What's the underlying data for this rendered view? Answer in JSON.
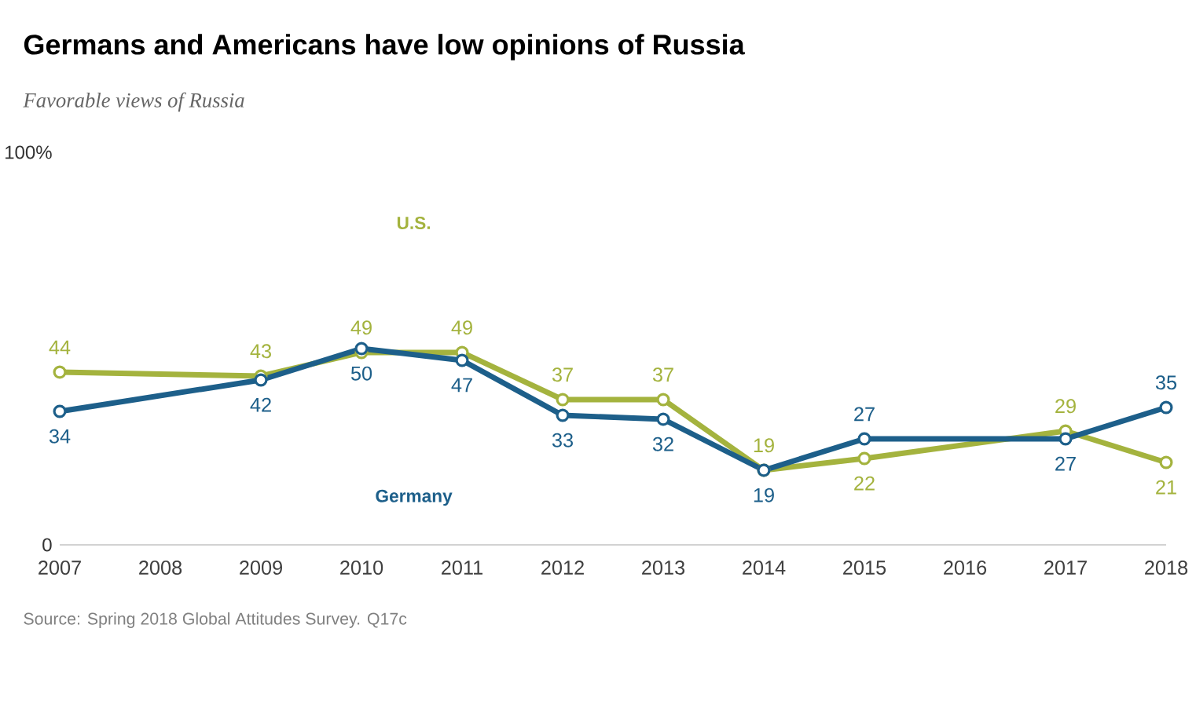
{
  "chart_data": {
    "type": "line",
    "title": "Germans and Americans have low opinions of Russia",
    "subtitle": "Favorable views of Russia",
    "annotations": [
      "Source: Spring 2018 Global Attitudes Survey. Q17c"
    ],
    "xlim": [
      2007,
      2018
    ],
    "xticks": [
      2007,
      2008,
      2009,
      2010,
      2011,
      2012,
      2013,
      2014,
      2015,
      2016,
      2017,
      2018
    ],
    "ylim": [
      0,
      100
    ],
    "yticks": [
      {
        "value": 0,
        "label": "0"
      },
      {
        "value": 100,
        "label": "100%"
      }
    ],
    "marker": "circle",
    "data_labels": true,
    "grid": false,
    "legend": false,
    "series": [
      {
        "name": "U.S.",
        "color": "#a4b33e",
        "x": [
          2007,
          2009,
          2010,
          2011,
          2012,
          2013,
          2014,
          2015,
          2017,
          2018
        ],
        "values": [
          44,
          43,
          49,
          49,
          37,
          37,
          19,
          22,
          29,
          21
        ]
      },
      {
        "name": "Germany",
        "color": "#1d5f8a",
        "x": [
          2007,
          2009,
          2010,
          2011,
          2012,
          2013,
          2014,
          2015,
          2017,
          2018
        ],
        "values": [
          34,
          42,
          50,
          47,
          33,
          32,
          19,
          27,
          27,
          35
        ]
      }
    ]
  }
}
